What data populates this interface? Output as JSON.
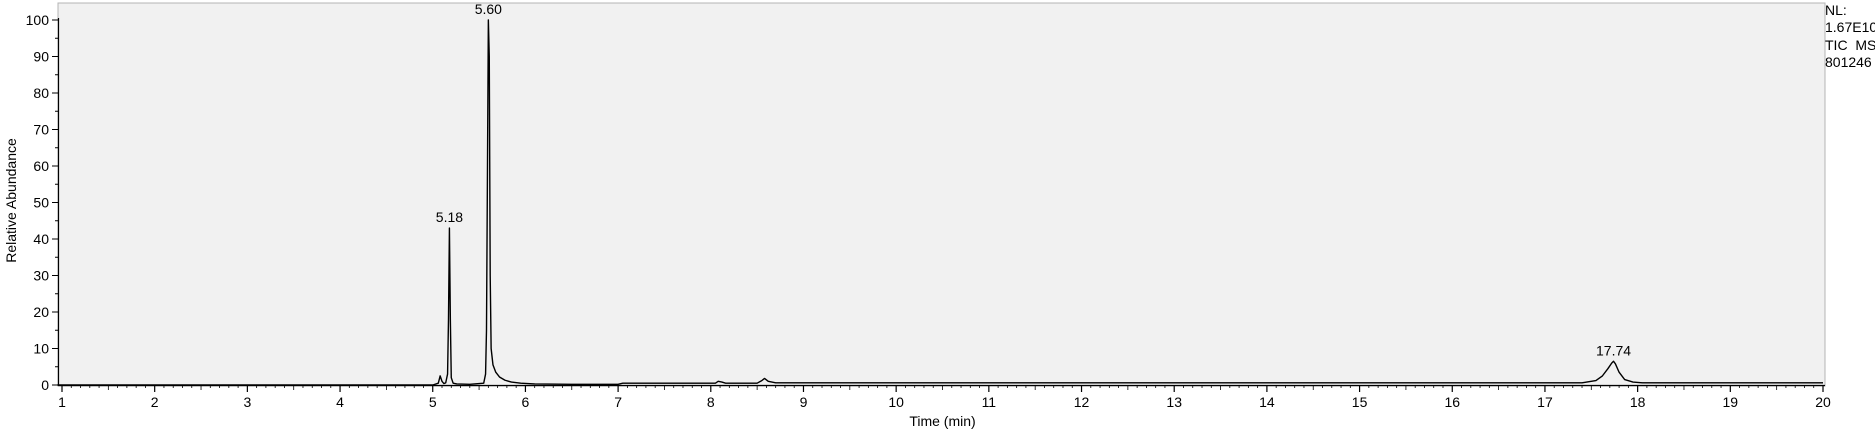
{
  "info_panel": {
    "nl_label": "NL:",
    "nl_value": "1.67E10",
    "scan_type": "TIC  MS",
    "file_id": "801246"
  },
  "colors": {
    "plot_background": "#f1f1f1",
    "trace": "#000000",
    "frame": "#b4b4b4"
  },
  "chart_data": {
    "type": "line",
    "title": "",
    "xlabel": "Time (min)",
    "ylabel": "Relative Abundance",
    "xlim": [
      0.95,
      20
    ],
    "ylim": [
      0,
      100
    ],
    "x_ticks": [
      1,
      2,
      3,
      4,
      5,
      6,
      7,
      8,
      9,
      10,
      11,
      12,
      13,
      14,
      15,
      16,
      17,
      18,
      19,
      20
    ],
    "y_ticks": [
      0,
      10,
      20,
      30,
      40,
      50,
      60,
      70,
      80,
      90,
      100
    ],
    "grid": false,
    "peak_annotations": [
      {
        "label": "5.18",
        "x": 5.18,
        "y": 43
      },
      {
        "label": "5.60",
        "x": 5.6,
        "y": 100
      },
      {
        "label": "17.74",
        "x": 17.74,
        "y": 6.5
      }
    ],
    "series": [
      {
        "x": [
          0.95,
          5.0,
          5.06,
          5.08,
          5.1,
          5.12,
          5.14,
          5.16,
          5.17,
          5.18,
          5.19,
          5.2,
          5.22,
          5.26,
          5.4,
          5.55,
          5.57,
          5.58,
          5.59,
          5.6,
          5.61,
          5.62,
          5.63,
          5.65,
          5.68,
          5.72,
          5.78,
          5.85,
          5.95,
          6.1,
          6.5,
          7.0,
          7.05,
          8.05,
          8.08,
          8.12,
          8.16,
          8.5,
          8.55,
          8.58,
          8.62,
          8.7,
          17.4,
          17.55,
          17.62,
          17.68,
          17.72,
          17.74,
          17.76,
          17.8,
          17.86,
          17.95,
          18.05,
          18.1,
          20.0
        ],
        "y": [
          0,
          0,
          0.5,
          2.5,
          1.0,
          0.4,
          0.6,
          3.0,
          18.0,
          43.0,
          18.0,
          2.0,
          0.5,
          0.3,
          0.2,
          0.5,
          3.0,
          15.0,
          57.0,
          100.0,
          90.0,
          30.0,
          10.0,
          5.5,
          3.5,
          2.2,
          1.3,
          0.8,
          0.5,
          0.3,
          0.2,
          0.2,
          0.5,
          0.5,
          1.0,
          0.8,
          0.5,
          0.5,
          1.2,
          1.8,
          1.0,
          0.6,
          0.6,
          1.2,
          2.5,
          4.5,
          6.0,
          6.5,
          5.8,
          3.5,
          1.5,
          0.8,
          0.6,
          0.6,
          0.6
        ]
      }
    ]
  }
}
